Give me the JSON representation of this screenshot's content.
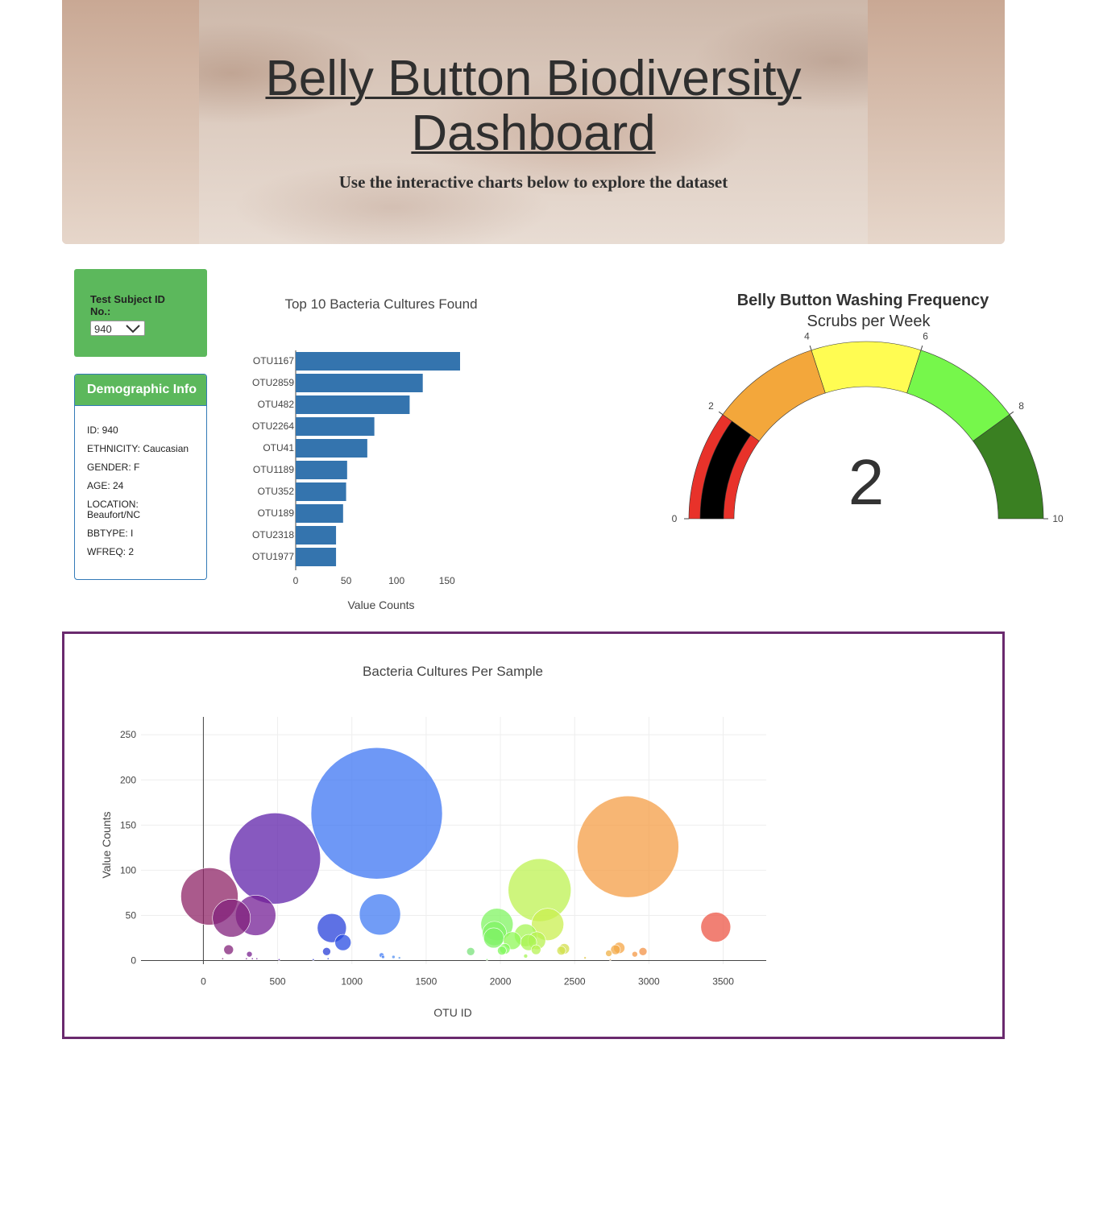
{
  "header": {
    "title": "Belly Button Biodiversity Dashboard",
    "subtitle": "Use the interactive charts below to explore the dataset"
  },
  "selector": {
    "label": "Test Subject ID No.:",
    "selected": "940"
  },
  "demographics": {
    "heading": "Demographic Info",
    "items": [
      "ID: 940",
      "ETHNICITY: Caucasian",
      "GENDER: F",
      "AGE: 24",
      "LOCATION: Beaufort/NC",
      "BBTYPE: I",
      "WFREQ: 2"
    ]
  },
  "colors": {
    "bar": "#3474ae",
    "panel_green": "#5cb85c",
    "panel_border": "#337ab7",
    "bubble_border": "#6a2a6e"
  },
  "chart_data": [
    {
      "type": "bar",
      "orientation": "horizontal",
      "title": "Top 10 Bacteria Cultures Found",
      "xlabel": "Value Counts",
      "ylabel": "",
      "xlim": [
        0,
        163
      ],
      "xticks": [
        0,
        50,
        100,
        150
      ],
      "categories": [
        "OTU1167",
        "OTU2859",
        "OTU482",
        "OTU2264",
        "OTU41",
        "OTU1189",
        "OTU352",
        "OTU189",
        "OTU2318",
        "OTU1977"
      ],
      "values": [
        163,
        126,
        113,
        78,
        71,
        51,
        50,
        47,
        40,
        40
      ]
    },
    {
      "type": "gauge",
      "title": "Belly Button Washing Frequency",
      "subtitle": "Scrubs per Week",
      "value": 2,
      "range": [
        0,
        10
      ],
      "ticks": [
        0,
        2,
        4,
        6,
        8,
        10
      ],
      "steps": [
        {
          "range": [
            0,
            2
          ],
          "color": "#e8322a"
        },
        {
          "range": [
            2,
            4
          ],
          "color": "#f3a73b"
        },
        {
          "range": [
            4,
            6
          ],
          "color": "#fffc52"
        },
        {
          "range": [
            6,
            8
          ],
          "color": "#76f74b"
        },
        {
          "range": [
            8,
            10
          ],
          "color": "#3a8022"
        }
      ],
      "bar_color": "#000000"
    },
    {
      "type": "scatter",
      "title": "Bacteria Cultures Per Sample",
      "xlabel": "OTU ID",
      "ylabel": "Value Counts",
      "xlim": [
        -420,
        3790
      ],
      "ylim": [
        -4,
        268
      ],
      "xticks": [
        0,
        500,
        1000,
        1500,
        2000,
        2500,
        3000,
        3500
      ],
      "yticks": [
        0,
        50,
        100,
        150,
        200,
        250
      ],
      "points": [
        {
          "x": 1167,
          "y": 163
        },
        {
          "x": 2859,
          "y": 126
        },
        {
          "x": 482,
          "y": 113
        },
        {
          "x": 2264,
          "y": 78
        },
        {
          "x": 41,
          "y": 71
        },
        {
          "x": 1189,
          "y": 51
        },
        {
          "x": 352,
          "y": 50
        },
        {
          "x": 189,
          "y": 47
        },
        {
          "x": 2318,
          "y": 40
        },
        {
          "x": 1977,
          "y": 40
        },
        {
          "x": 3450,
          "y": 37
        },
        {
          "x": 865,
          "y": 36
        },
        {
          "x": 1960,
          "y": 30
        },
        {
          "x": 2170,
          "y": 28
        },
        {
          "x": 1955,
          "y": 25
        },
        {
          "x": 940,
          "y": 20
        },
        {
          "x": 2080,
          "y": 22
        },
        {
          "x": 2190,
          "y": 20
        },
        {
          "x": 2245,
          "y": 22
        },
        {
          "x": 2800,
          "y": 14
        },
        {
          "x": 2775,
          "y": 12
        },
        {
          "x": 2430,
          "y": 13
        },
        {
          "x": 2410,
          "y": 11
        },
        {
          "x": 2030,
          "y": 13
        },
        {
          "x": 2240,
          "y": 12
        },
        {
          "x": 2010,
          "y": 11
        },
        {
          "x": 170,
          "y": 12
        },
        {
          "x": 1800,
          "y": 10
        },
        {
          "x": 2960,
          "y": 10
        },
        {
          "x": 2730,
          "y": 8
        },
        {
          "x": 830,
          "y": 10
        },
        {
          "x": 310,
          "y": 7
        },
        {
          "x": 2905,
          "y": 7
        },
        {
          "x": 1200,
          "y": 6
        },
        {
          "x": 1280,
          "y": 4
        },
        {
          "x": 2170,
          "y": 5
        },
        {
          "x": 1210,
          "y": 4
        },
        {
          "x": 2570,
          "y": 3
        },
        {
          "x": 1320,
          "y": 3
        },
        {
          "x": 360,
          "y": 2
        },
        {
          "x": 330,
          "y": 2
        },
        {
          "x": 290,
          "y": 2
        },
        {
          "x": 130,
          "y": 2
        },
        {
          "x": 840,
          "y": 2
        },
        {
          "x": 510,
          "y": 1
        },
        {
          "x": 740,
          "y": 1
        },
        {
          "x": 1910,
          "y": 1
        },
        {
          "x": 2740,
          "y": 1
        }
      ]
    }
  ]
}
